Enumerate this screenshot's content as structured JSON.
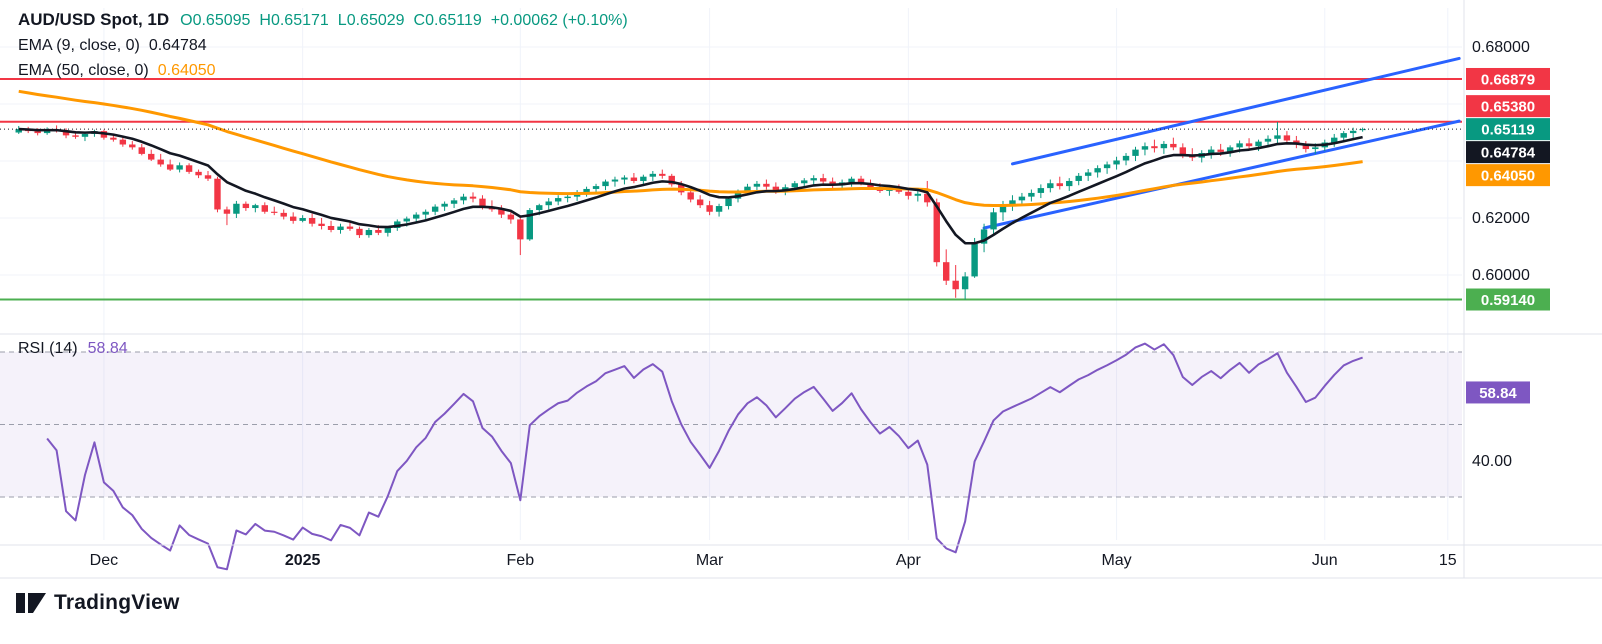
{
  "header": {
    "title": "AUD/USD Spot, 1D",
    "ohlc": [
      "O0.65095",
      "H0.65171",
      "L0.65029",
      "C0.65119",
      "+0.00062 (+0.10%)"
    ],
    "ema9": {
      "label": "EMA (9, close, 0)",
      "value": "0.64784"
    },
    "ema50": {
      "label": "EMA (50, close, 0)",
      "value": "0.64050"
    }
  },
  "rsi_legend": {
    "label": "RSI (14)",
    "value": "58.84"
  },
  "footer": {
    "brand": "TradingView"
  },
  "time_axis": {
    "labels": [
      {
        "label": "Dec",
        "index": 9,
        "bold": false
      },
      {
        "label": "2025",
        "index": 30,
        "bold": true
      },
      {
        "label": "Feb",
        "index": 53,
        "bold": false
      },
      {
        "label": "Mar",
        "index": 73,
        "bold": false
      },
      {
        "label": "Apr",
        "index": 94,
        "bold": false
      },
      {
        "label": "May",
        "index": 116,
        "bold": false
      },
      {
        "label": "Jun",
        "index": 138,
        "bold": false
      },
      {
        "label": "15",
        "index": 151,
        "bold": false
      }
    ]
  },
  "chart_data": [
    {
      "type": "candlestick",
      "title": "AUD/USD Spot, 1D",
      "timeframe": "1D",
      "last": {
        "open": 0.65095,
        "high": 0.65171,
        "low": 0.65029,
        "close": 0.65119,
        "change": 0.00062,
        "change_pct": 0.1
      },
      "up_color": "#089981",
      "down_color": "#f23645",
      "grid_prices": [
        0.68,
        0.66,
        0.64,
        0.62,
        0.6
      ],
      "y_ticks": [
        {
          "label": "0.68000",
          "price": 0.68
        },
        {
          "label": "0.62000",
          "price": 0.62
        },
        {
          "label": "0.60000",
          "price": 0.6
        }
      ],
      "badges": [
        {
          "label": "0.66879",
          "price": 0.66879,
          "bg": "#f23645",
          "anchor": false
        },
        {
          "label": "0.65380",
          "price": 0.6538,
          "bg": "#f23645",
          "anchor": false
        },
        {
          "label": "0.65119",
          "price": 0.65119,
          "bg": "#089981",
          "anchor": true
        },
        {
          "label": "0.64784",
          "price": 0.64784,
          "bg": "#131722",
          "anchor": false
        },
        {
          "label": "0.64050",
          "price": 0.6405,
          "bg": "#ff9800",
          "anchor": false
        },
        {
          "label": "0.59140",
          "price": 0.5914,
          "bg": "#4caf50",
          "anchor": false
        }
      ],
      "levels": [
        {
          "price": 0.66879,
          "color": "#f23645"
        },
        {
          "price": 0.6538,
          "color": "#f23645"
        },
        {
          "price": 0.5914,
          "color": "#4caf50"
        }
      ],
      "trendlines": [
        {
          "from_index": 102,
          "from_price": 0.6165,
          "to_index": 152.2,
          "to_price": 0.654,
          "color": "#2962ff"
        },
        {
          "from_index": 105,
          "from_price": 0.639,
          "to_index": 152.2,
          "to_price": 0.676,
          "color": "#2962ff"
        }
      ],
      "overlays": [
        {
          "name": "EMA 9",
          "period": 9,
          "value": 0.64784,
          "color": "#131722",
          "seed": null
        },
        {
          "name": "EMA 50",
          "period": 50,
          "value": 0.6405,
          "color": "#ff9800",
          "seed": 0.665
        }
      ],
      "ohlc": [
        [
          0.65,
          0.6523,
          0.6495,
          0.6512
        ],
        [
          0.6512,
          0.652,
          0.6498,
          0.6505
        ],
        [
          0.6505,
          0.6515,
          0.649,
          0.6498
        ],
        [
          0.6498,
          0.6518,
          0.6492,
          0.651
        ],
        [
          0.651,
          0.6525,
          0.65,
          0.6508
        ],
        [
          0.6508,
          0.6515,
          0.648,
          0.649
        ],
        [
          0.649,
          0.6505,
          0.6478,
          0.6485
        ],
        [
          0.6485,
          0.65,
          0.647,
          0.6495
        ],
        [
          0.6495,
          0.651,
          0.6485,
          0.6505
        ],
        [
          0.6505,
          0.651,
          0.6475,
          0.6482
        ],
        [
          0.6482,
          0.6495,
          0.6468,
          0.6475
        ],
        [
          0.6475,
          0.6488,
          0.645,
          0.6458
        ],
        [
          0.6458,
          0.647,
          0.644,
          0.6448
        ],
        [
          0.6448,
          0.646,
          0.642,
          0.6425
        ],
        [
          0.6425,
          0.644,
          0.64,
          0.6405
        ],
        [
          0.6405,
          0.6425,
          0.638,
          0.6388
        ],
        [
          0.6388,
          0.6405,
          0.6365,
          0.637
        ],
        [
          0.637,
          0.6395,
          0.636,
          0.6385
        ],
        [
          0.6385,
          0.6392,
          0.6355,
          0.6362
        ],
        [
          0.6362,
          0.637,
          0.634,
          0.635
        ],
        [
          0.635,
          0.6365,
          0.633,
          0.6338
        ],
        [
          0.6338,
          0.6345,
          0.622,
          0.623
        ],
        [
          0.623,
          0.624,
          0.6175,
          0.6215
        ],
        [
          0.6215,
          0.626,
          0.62,
          0.625
        ],
        [
          0.625,
          0.6258,
          0.6225,
          0.6235
        ],
        [
          0.6235,
          0.625,
          0.622,
          0.6245
        ],
        [
          0.6245,
          0.6255,
          0.6215,
          0.6222
        ],
        [
          0.6222,
          0.624,
          0.621,
          0.6218
        ],
        [
          0.6218,
          0.623,
          0.6195,
          0.6205
        ],
        [
          0.6205,
          0.622,
          0.618,
          0.619
        ],
        [
          0.619,
          0.621,
          0.6185,
          0.62
        ],
        [
          0.62,
          0.6215,
          0.617,
          0.618
        ],
        [
          0.618,
          0.62,
          0.616,
          0.6172
        ],
        [
          0.6172,
          0.619,
          0.615,
          0.6158
        ],
        [
          0.6158,
          0.618,
          0.6145,
          0.617
        ],
        [
          0.617,
          0.6185,
          0.6155,
          0.6162
        ],
        [
          0.6162,
          0.617,
          0.613,
          0.614
        ],
        [
          0.614,
          0.6165,
          0.6131,
          0.6158
        ],
        [
          0.6158,
          0.6175,
          0.614,
          0.6148
        ],
        [
          0.6148,
          0.617,
          0.6135,
          0.6165
        ],
        [
          0.6165,
          0.6195,
          0.6155,
          0.6188
        ],
        [
          0.6188,
          0.6205,
          0.617,
          0.6198
        ],
        [
          0.6198,
          0.622,
          0.6185,
          0.6212
        ],
        [
          0.6212,
          0.623,
          0.6195,
          0.6222
        ],
        [
          0.6222,
          0.6248,
          0.621,
          0.624
        ],
        [
          0.624,
          0.6258,
          0.6225,
          0.625
        ],
        [
          0.625,
          0.627,
          0.6235,
          0.6262
        ],
        [
          0.6262,
          0.6285,
          0.6248,
          0.6275
        ],
        [
          0.6275,
          0.629,
          0.6255,
          0.6268
        ],
        [
          0.6268,
          0.628,
          0.623,
          0.624
        ],
        [
          0.624,
          0.6262,
          0.6222,
          0.623
        ],
        [
          0.623,
          0.6245,
          0.62,
          0.6212
        ],
        [
          0.6212,
          0.6225,
          0.618,
          0.6195
        ],
        [
          0.6195,
          0.6205,
          0.607,
          0.6125
        ],
        [
          0.6125,
          0.6235,
          0.612,
          0.6228
        ],
        [
          0.6228,
          0.625,
          0.621,
          0.6245
        ],
        [
          0.6245,
          0.627,
          0.623,
          0.6258
        ],
        [
          0.6258,
          0.628,
          0.6245,
          0.627
        ],
        [
          0.627,
          0.6285,
          0.6255,
          0.6275
        ],
        [
          0.6275,
          0.6298,
          0.626,
          0.629
        ],
        [
          0.629,
          0.631,
          0.6275,
          0.6302
        ],
        [
          0.6302,
          0.632,
          0.6288,
          0.6312
        ],
        [
          0.6312,
          0.6335,
          0.6298,
          0.6328
        ],
        [
          0.6328,
          0.6345,
          0.631,
          0.6335
        ],
        [
          0.6335,
          0.635,
          0.6318,
          0.6342
        ],
        [
          0.6342,
          0.6358,
          0.6322,
          0.633
        ],
        [
          0.633,
          0.6352,
          0.6315,
          0.6345
        ],
        [
          0.6345,
          0.6365,
          0.633,
          0.6355
        ],
        [
          0.6355,
          0.637,
          0.6338,
          0.6348
        ],
        [
          0.6348,
          0.6355,
          0.631,
          0.6318
        ],
        [
          0.6318,
          0.633,
          0.628,
          0.629
        ],
        [
          0.629,
          0.6305,
          0.6255,
          0.6265
        ],
        [
          0.6265,
          0.628,
          0.6235,
          0.6245
        ],
        [
          0.6245,
          0.626,
          0.621,
          0.6222
        ],
        [
          0.6222,
          0.625,
          0.6205,
          0.6242
        ],
        [
          0.6242,
          0.6275,
          0.623,
          0.6268
        ],
        [
          0.6268,
          0.63,
          0.6255,
          0.6292
        ],
        [
          0.6292,
          0.632,
          0.628,
          0.631
        ],
        [
          0.631,
          0.633,
          0.6295,
          0.632
        ],
        [
          0.632,
          0.6335,
          0.63,
          0.631
        ],
        [
          0.631,
          0.6325,
          0.6285,
          0.6295
        ],
        [
          0.6295,
          0.6318,
          0.628,
          0.6308
        ],
        [
          0.6308,
          0.633,
          0.6295,
          0.6322
        ],
        [
          0.6322,
          0.634,
          0.6308,
          0.6332
        ],
        [
          0.6332,
          0.635,
          0.6318,
          0.634
        ],
        [
          0.634,
          0.6355,
          0.632,
          0.6328
        ],
        [
          0.6328,
          0.6342,
          0.6305,
          0.6315
        ],
        [
          0.6315,
          0.6335,
          0.63,
          0.6325
        ],
        [
          0.6325,
          0.6345,
          0.631,
          0.6338
        ],
        [
          0.6338,
          0.6348,
          0.6315,
          0.6322
        ],
        [
          0.6322,
          0.6335,
          0.63,
          0.6308
        ],
        [
          0.6308,
          0.6322,
          0.6288,
          0.6295
        ],
        [
          0.6295,
          0.6312,
          0.6278,
          0.6302
        ],
        [
          0.6302,
          0.6318,
          0.6285,
          0.6292
        ],
        [
          0.6292,
          0.6305,
          0.6265,
          0.6278
        ],
        [
          0.6278,
          0.6295,
          0.6258,
          0.6285
        ],
        [
          0.6285,
          0.633,
          0.624,
          0.6255
        ],
        [
          0.6255,
          0.6268,
          0.603,
          0.6045
        ],
        [
          0.6045,
          0.609,
          0.5965,
          0.598
        ],
        [
          0.598,
          0.6035,
          0.592,
          0.595
        ],
        [
          0.595,
          0.601,
          0.5914,
          0.5995
        ],
        [
          0.5995,
          0.613,
          0.599,
          0.611
        ],
        [
          0.611,
          0.618,
          0.608,
          0.616
        ],
        [
          0.616,
          0.6235,
          0.614,
          0.622
        ],
        [
          0.622,
          0.626,
          0.619,
          0.6248
        ],
        [
          0.6248,
          0.628,
          0.6225,
          0.6262
        ],
        [
          0.6262,
          0.6288,
          0.6245,
          0.6275
        ],
        [
          0.6275,
          0.63,
          0.6258,
          0.6288
        ],
        [
          0.6288,
          0.6318,
          0.627,
          0.6305
        ],
        [
          0.6305,
          0.6335,
          0.629,
          0.6322
        ],
        [
          0.6322,
          0.6345,
          0.63,
          0.6312
        ],
        [
          0.6312,
          0.634,
          0.6295,
          0.633
        ],
        [
          0.633,
          0.6358,
          0.6315,
          0.6348
        ],
        [
          0.6348,
          0.6372,
          0.633,
          0.636
        ],
        [
          0.636,
          0.6385,
          0.6342,
          0.6375
        ],
        [
          0.6375,
          0.6398,
          0.6355,
          0.6388
        ],
        [
          0.6388,
          0.6415,
          0.637,
          0.6402
        ],
        [
          0.6402,
          0.6428,
          0.6385,
          0.6418
        ],
        [
          0.6418,
          0.645,
          0.64,
          0.644
        ],
        [
          0.644,
          0.6465,
          0.642,
          0.6452
        ],
        [
          0.6452,
          0.6475,
          0.643,
          0.6445
        ],
        [
          0.6445,
          0.647,
          0.6425,
          0.646
        ],
        [
          0.646,
          0.6482,
          0.6438,
          0.6448
        ],
        [
          0.6448,
          0.6462,
          0.641,
          0.6422
        ],
        [
          0.6422,
          0.6445,
          0.64,
          0.6412
        ],
        [
          0.6412,
          0.6438,
          0.6395,
          0.6428
        ],
        [
          0.6428,
          0.6452,
          0.6408,
          0.644
        ],
        [
          0.644,
          0.646,
          0.6418,
          0.6432
        ],
        [
          0.6432,
          0.6455,
          0.6415,
          0.6448
        ],
        [
          0.6448,
          0.6472,
          0.643,
          0.6462
        ],
        [
          0.6462,
          0.648,
          0.644,
          0.6452
        ],
        [
          0.6452,
          0.6475,
          0.6435,
          0.6468
        ],
        [
          0.6468,
          0.649,
          0.6448,
          0.6478
        ],
        [
          0.6478,
          0.6537,
          0.646,
          0.649
        ],
        [
          0.649,
          0.6505,
          0.6462,
          0.6472
        ],
        [
          0.6472,
          0.6488,
          0.6445,
          0.6458
        ],
        [
          0.6458,
          0.647,
          0.643,
          0.6442
        ],
        [
          0.6442,
          0.6462,
          0.6425,
          0.6448
        ],
        [
          0.6448,
          0.6475,
          0.6435,
          0.6465
        ],
        [
          0.6465,
          0.6495,
          0.645,
          0.6482
        ],
        [
          0.6482,
          0.6505,
          0.6468,
          0.6498
        ],
        [
          0.6498,
          0.6517,
          0.648,
          0.6506
        ],
        [
          0.65095,
          0.65171,
          0.65029,
          0.65119
        ]
      ]
    },
    {
      "type": "line",
      "name": "RSI",
      "period": 14,
      "value": 58.84,
      "color": "#7e57c2",
      "band_fill": "rgba(126,87,194,0.08)",
      "levels": [
        70,
        50,
        30
      ],
      "ticks": [
        {
          "label": "40.00",
          "value": 40
        }
      ],
      "badge": {
        "label": "58.84",
        "value": 58.84,
        "bg": "#7e57c2"
      }
    }
  ]
}
